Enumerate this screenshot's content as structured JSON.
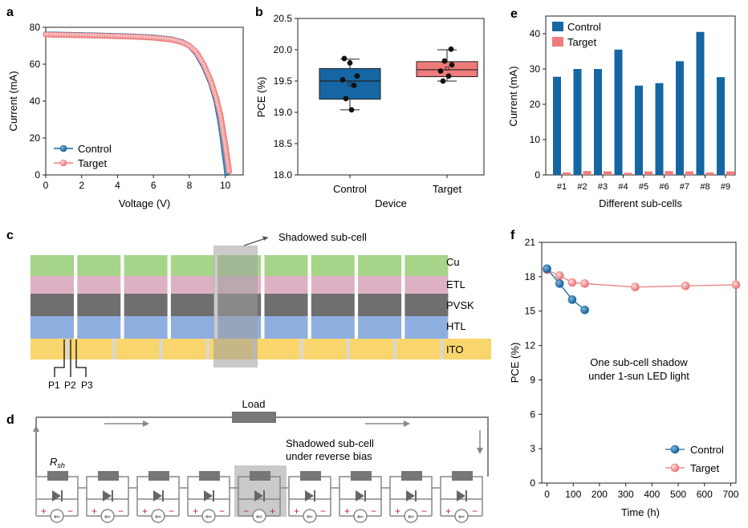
{
  "panels": {
    "a": {
      "letter": "a"
    },
    "b": {
      "letter": "b"
    },
    "c": {
      "letter": "c"
    },
    "d": {
      "letter": "d"
    },
    "e": {
      "letter": "e"
    },
    "f": {
      "letter": "f"
    }
  },
  "colors": {
    "control": "#1566a3",
    "target": "#ef7b7b",
    "target_light": "#f5a3a3"
  },
  "chart_data": [
    {
      "id": "a",
      "type": "line",
      "xlabel": "Voltage (V)",
      "ylabel": "Current (mA)",
      "xlim": [
        0,
        11
      ],
      "ylim": [
        0,
        80
      ],
      "xticks": [
        0,
        2,
        4,
        6,
        8,
        10
      ],
      "yticks": [
        0,
        20,
        40,
        60,
        80
      ],
      "legend": "bottom-left",
      "series": [
        {
          "name": "Control",
          "points": [
            [
              0,
              76.2
            ],
            [
              1,
              76
            ],
            [
              2,
              75.8
            ],
            [
              3,
              75.6
            ],
            [
              4,
              75.3
            ],
            [
              5,
              75
            ],
            [
              6,
              74.5
            ],
            [
              7,
              73.5
            ],
            [
              7.6,
              72
            ],
            [
              8,
              70
            ],
            [
              8.4,
              66
            ],
            [
              8.8,
              59
            ],
            [
              9.2,
              50
            ],
            [
              9.5,
              40
            ],
            [
              9.7,
              30
            ],
            [
              9.85,
              20
            ],
            [
              9.95,
              12
            ],
            [
              10.05,
              5
            ],
            [
              10.1,
              1
            ]
          ]
        },
        {
          "name": "Target",
          "points": [
            [
              0,
              76
            ],
            [
              1,
              75.8
            ],
            [
              2,
              75.6
            ],
            [
              3,
              75.4
            ],
            [
              4,
              75.1
            ],
            [
              5,
              74.8
            ],
            [
              6,
              74.3
            ],
            [
              7,
              73.3
            ],
            [
              7.6,
              71.8
            ],
            [
              8,
              70
            ],
            [
              8.4,
              66.5
            ],
            [
              8.8,
              60
            ],
            [
              9.2,
              51
            ],
            [
              9.5,
              42
            ],
            [
              9.75,
              32
            ],
            [
              9.9,
              23
            ],
            [
              10.05,
              14
            ],
            [
              10.15,
              7
            ],
            [
              10.22,
              2
            ]
          ]
        }
      ]
    },
    {
      "id": "b",
      "type": "box",
      "xlabel": "Device",
      "ylabel": "PCE (%)",
      "ylim": [
        18.0,
        20.5
      ],
      "yticks": [
        "18.0",
        "18.5",
        "19.0",
        "19.5",
        "20.0",
        "20.5"
      ],
      "categories": [
        "Control",
        "Target"
      ],
      "boxes": [
        {
          "name": "Control",
          "whisker_low": 19.04,
          "q1": 19.21,
          "median": 19.5,
          "q3": 19.7,
          "whisker_high": 19.85,
          "mean": 19.45,
          "points": [
            19.86,
            19.79,
            19.58,
            19.52,
            19.43,
            19.22,
            19.04
          ]
        },
        {
          "name": "Target",
          "whisker_low": 19.5,
          "q1": 19.57,
          "median": 19.68,
          "q3": 19.81,
          "whisker_high": 20.0,
          "mean": 19.7,
          "points": [
            20.01,
            19.82,
            19.76,
            19.66,
            19.58,
            19.5
          ]
        }
      ]
    },
    {
      "id": "e",
      "type": "bar",
      "xlabel": "Different sub-cells",
      "ylabel": "Current (mA)",
      "ylim": [
        0,
        45
      ],
      "yticks": [
        0,
        10,
        20,
        30,
        40
      ],
      "legend": "top-left",
      "categories": [
        "#1",
        "#2",
        "#3",
        "#4",
        "#5",
        "#6",
        "#7",
        "#8",
        "#9"
      ],
      "series": [
        {
          "name": "Control",
          "values": [
            27.8,
            30,
            30,
            35.5,
            25.3,
            26,
            32.2,
            40.5,
            27.7
          ]
        },
        {
          "name": "Target",
          "values": [
            0.7,
            1.1,
            1.0,
            0.6,
            1.0,
            1.1,
            1.0,
            0.7,
            1.0
          ]
        }
      ]
    },
    {
      "id": "f",
      "type": "line",
      "xlabel": "Time (h)",
      "ylabel": "PCE (%)",
      "xlim": [
        -20,
        720
      ],
      "ylim": [
        0,
        21
      ],
      "xticks": [
        0,
        100,
        200,
        300,
        400,
        500,
        600,
        700
      ],
      "yticks": [
        0,
        3,
        6,
        9,
        12,
        15,
        18,
        21
      ],
      "annotation": "One sub-cell shadow\nunder 1-sun LED light",
      "legend": "bottom-right",
      "series": [
        {
          "name": "Control",
          "x": [
            0,
            48,
            96,
            144
          ],
          "y": [
            18.7,
            17.4,
            16.0,
            15.1
          ]
        },
        {
          "name": "Target",
          "x": [
            0,
            48,
            96,
            144,
            336,
            528,
            720
          ],
          "y": [
            18.6,
            18.1,
            17.5,
            17.4,
            17.1,
            17.2,
            17.3
          ]
        }
      ]
    }
  ],
  "schematic": {
    "layers": [
      "Cu",
      "ETL",
      "PVSK",
      "HTL",
      "ITO"
    ],
    "shadow_label": "Shadowed sub-cell",
    "scribes": [
      "P1",
      "P2",
      "P3"
    ]
  },
  "circuit": {
    "load_label": "Load",
    "rsh_main": "R",
    "rsh_sub": "sh",
    "shadow_label_line1": "Shadowed sub-cell",
    "shadow_label_line2": "under reverse bias",
    "plus": "+",
    "minus": "−"
  }
}
